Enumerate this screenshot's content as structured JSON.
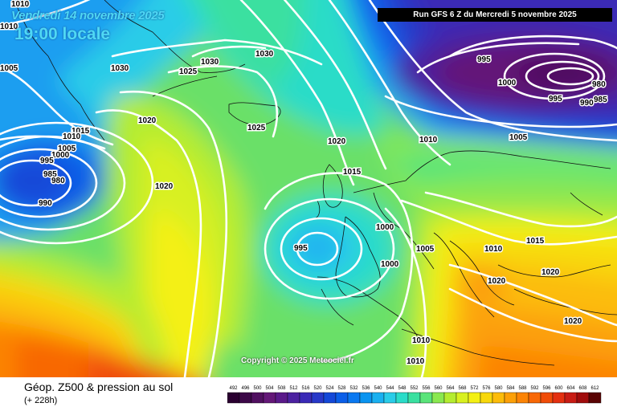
{
  "header": {
    "date": "Vendredi 14 novembre 2025",
    "local_time": "19:00 locale",
    "run_info": "Run GFS 6 Z du Mercredi 5 novembre 2025"
  },
  "copyright": "Copyright © 2025 Meteociel.fr",
  "legend": {
    "title": "Géop. Z500 & pression au sol",
    "subtitle": "(+ 228h)",
    "scale": [
      {
        "label": "492",
        "color": "#2a0030"
      },
      {
        "label": "496",
        "color": "#3c0848"
      },
      {
        "label": "500",
        "color": "#501060"
      },
      {
        "label": "504",
        "color": "#641878"
      },
      {
        "label": "508",
        "color": "#5a1a8a"
      },
      {
        "label": "512",
        "color": "#4c22a0"
      },
      {
        "label": "516",
        "color": "#3a2ab6"
      },
      {
        "label": "520",
        "color": "#2838c8"
      },
      {
        "label": "524",
        "color": "#1448d8"
      },
      {
        "label": "528",
        "color": "#0a5ee8"
      },
      {
        "label": "532",
        "color": "#0a78f0"
      },
      {
        "label": "536",
        "color": "#0a94f0"
      },
      {
        "label": "540",
        "color": "#1ab0f0"
      },
      {
        "label": "544",
        "color": "#2acce8"
      },
      {
        "label": "548",
        "color": "#2adcc8"
      },
      {
        "label": "552",
        "color": "#3ae0a0"
      },
      {
        "label": "556",
        "color": "#5ae47a"
      },
      {
        "label": "560",
        "color": "#8ae850"
      },
      {
        "label": "564",
        "color": "#b4ec30"
      },
      {
        "label": "568",
        "color": "#d8f020"
      },
      {
        "label": "572",
        "color": "#f4f014"
      },
      {
        "label": "576",
        "color": "#f8d80c"
      },
      {
        "label": "580",
        "color": "#fcbc0a"
      },
      {
        "label": "584",
        "color": "#fca008"
      },
      {
        "label": "588",
        "color": "#fc8406"
      },
      {
        "label": "592",
        "color": "#f86806"
      },
      {
        "label": "596",
        "color": "#f04c08"
      },
      {
        "label": "600",
        "color": "#e43010"
      },
      {
        "label": "604",
        "color": "#c81c14"
      },
      {
        "label": "608",
        "color": "#a00c0c"
      },
      {
        "label": "612",
        "color": "#5a0404"
      }
    ]
  },
  "isobar_labels": [
    {
      "text": "1010"
    },
    {
      "text": "1010"
    },
    {
      "text": "1005"
    },
    {
      "text": "1030"
    },
    {
      "text": "1030"
    },
    {
      "text": "1025"
    },
    {
      "text": "1030"
    },
    {
      "text": "1020"
    },
    {
      "text": "1015"
    },
    {
      "text": "1010"
    },
    {
      "text": "1005"
    },
    {
      "text": "1000"
    },
    {
      "text": "995"
    },
    {
      "text": "985"
    },
    {
      "text": "980"
    },
    {
      "text": "990"
    },
    {
      "text": "1025"
    },
    {
      "text": "1020"
    },
    {
      "text": "1020"
    },
    {
      "text": "1015"
    },
    {
      "text": "1010"
    },
    {
      "text": "1000"
    },
    {
      "text": "995"
    },
    {
      "text": "1000"
    },
    {
      "text": "1005"
    },
    {
      "text": "995"
    },
    {
      "text": "1000"
    },
    {
      "text": "995"
    },
    {
      "text": "980"
    },
    {
      "text": "985"
    },
    {
      "text": "990"
    },
    {
      "text": "1005"
    },
    {
      "text": "1015"
    },
    {
      "text": "1010"
    },
    {
      "text": "1020"
    },
    {
      "text": "1020"
    },
    {
      "text": "1020"
    },
    {
      "text": "1010"
    },
    {
      "text": "1010"
    }
  ]
}
